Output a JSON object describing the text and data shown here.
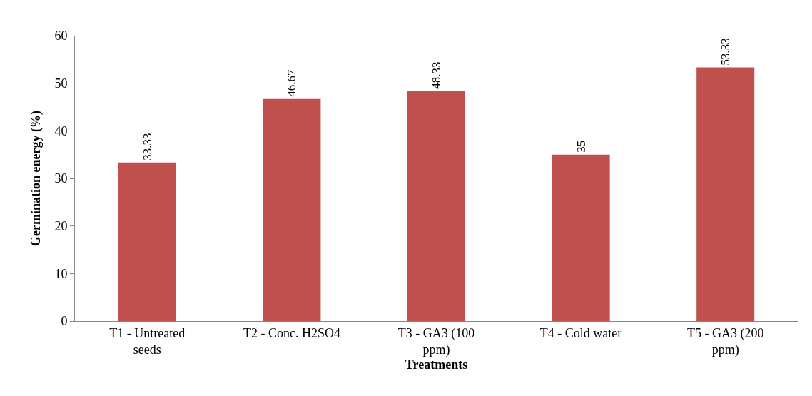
{
  "chart_data": {
    "type": "bar",
    "xlabel": "Treatments",
    "ylabel": "Germination energy (%)",
    "categories": [
      "T1 - Untreated seeds",
      "T2 - Conc. H2SO4",
      "T3 - GA3 (100 ppm)",
      "T4 - Cold water",
      "T5 - GA3 (200 ppm)"
    ],
    "values": [
      33.33,
      46.67,
      48.33,
      35,
      53.33
    ],
    "color": "#c0504d",
    "ylim": [
      0,
      60
    ],
    "yticks": [
      0,
      10,
      20,
      30,
      40,
      50,
      60
    ],
    "data_labels": true,
    "grid": false,
    "legend": false
  }
}
